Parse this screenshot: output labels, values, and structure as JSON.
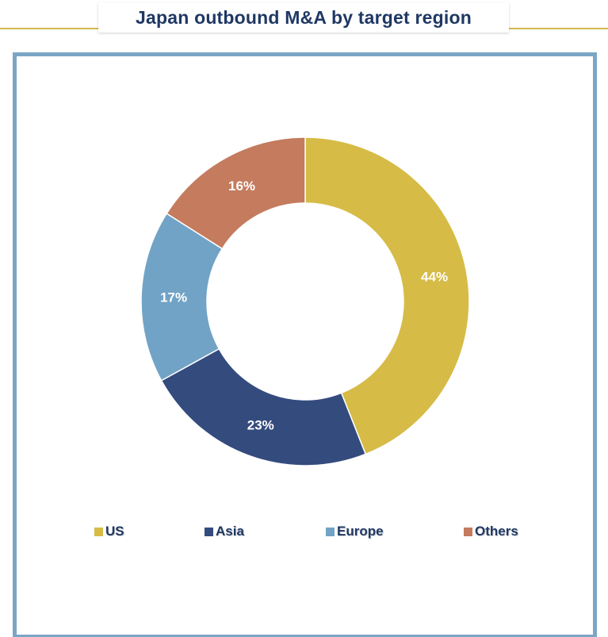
{
  "title": "Japan outbound M&A by target region",
  "chart_data": {
    "type": "pie",
    "style": "donut",
    "categories": [
      "US",
      "Asia",
      "Europe",
      "Others"
    ],
    "values": [
      44,
      23,
      17,
      16
    ],
    "labels": [
      "44%",
      "23%",
      "17%",
      "16%"
    ],
    "colors": [
      "#d6bb47",
      "#344b7e",
      "#71a3c6",
      "#c47b5e"
    ],
    "legend_position": "bottom",
    "start_angle": "12 o'clock",
    "direction": "clockwise"
  },
  "legend": {
    "items": [
      {
        "label": "US",
        "color": "#d6bb47"
      },
      {
        "label": "Asia",
        "color": "#344b7e"
      },
      {
        "label": "Europe",
        "color": "#71a3c6"
      },
      {
        "label": "Others",
        "color": "#c47b5e"
      }
    ]
  },
  "colors": {
    "title_text": "#1f3864",
    "frame_border": "#7ba6c6",
    "title_rule": "#d4b84a"
  }
}
